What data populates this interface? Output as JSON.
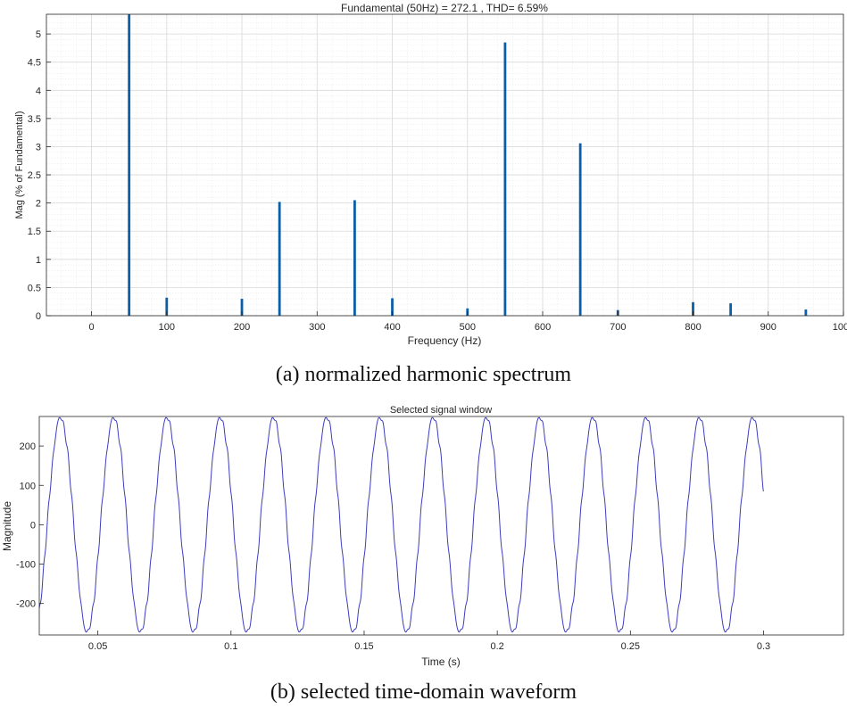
{
  "chart_data": [
    {
      "type": "bar",
      "title": "Fundamental (50Hz) = 272.1 , THD= 6.59%",
      "xlabel": "Frequency (Hz)",
      "ylabel": "Mag (% of Fundamental)",
      "xlim": [
        -60,
        1000
      ],
      "ylim": [
        0,
        5.35
      ],
      "xticks": [
        0,
        100,
        200,
        300,
        400,
        500,
        600,
        700,
        800,
        900,
        1000
      ],
      "xtick_labels": [
        "0",
        "100",
        "200",
        "300",
        "400",
        "500",
        "600",
        "700",
        "800",
        "900",
        "1000"
      ],
      "yticks": [
        0,
        0.5,
        1,
        1.5,
        2,
        2.5,
        3,
        3.5,
        4,
        4.5,
        5
      ],
      "ytick_labels": [
        "0",
        "0.5",
        "1",
        "1.5",
        "2",
        "2.5",
        "3",
        "3.5",
        "4",
        "4.5",
        "5"
      ],
      "grid": true,
      "minor_grid": true,
      "bar_color": "#0b5ea8",
      "x": [
        50,
        100,
        200,
        250,
        350,
        400,
        500,
        550,
        650,
        700,
        800,
        850,
        950
      ],
      "values": [
        5.35,
        0.32,
        0.3,
        2.02,
        2.05,
        0.31,
        0.13,
        4.85,
        3.06,
        0.1,
        0.24,
        0.22,
        0.11
      ]
    },
    {
      "type": "line",
      "title": "Selected signal window",
      "xlabel": "Time (s)",
      "ylabel": "Magnitude",
      "xlim": [
        0.028,
        0.33
      ],
      "ylim": [
        -280,
        275
      ],
      "xticks": [
        0.05,
        0.1,
        0.15,
        0.2,
        0.25,
        0.3
      ],
      "xtick_labels": [
        "0.05",
        "0.1",
        "0.15",
        "0.2",
        "0.25",
        "0.3"
      ],
      "yticks": [
        -200,
        -100,
        0,
        100,
        200
      ],
      "ytick_labels": [
        "-200",
        "-100",
        "0",
        "100",
        "200"
      ],
      "grid": false,
      "line_color": "#3d3dbf",
      "x_range": [
        0.028,
        0.3
      ],
      "fundamental_hz": 50,
      "amplitude": 272.1,
      "y_start": -220,
      "y_end": 85,
      "clipped_at": [
        -275,
        272
      ]
    }
  ],
  "captions": {
    "a": "(a) normalized harmonic spectrum",
    "b": "(b) selected time-domain waveform"
  }
}
